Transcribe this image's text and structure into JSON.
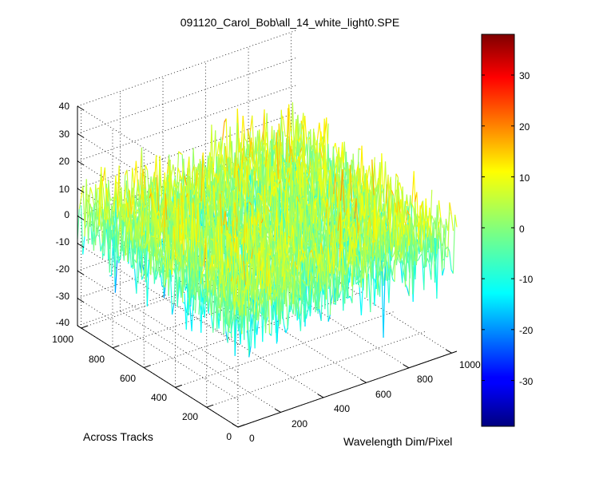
{
  "chart_data": {
    "type": "surface3d",
    "title": "091120_Carol_Bob\\all_14_white_light0.SPE",
    "xlabel": "Wavelength Dim/Pixel",
    "ylabel": "Across Tracks",
    "zlabel": "",
    "xlim": [
      0,
      1024
    ],
    "ylim": [
      0,
      1024
    ],
    "zlim": [
      -40,
      40
    ],
    "x_ticks": [
      "0",
      "200",
      "400",
      "600",
      "800",
      "1000"
    ],
    "y_ticks": [
      "0",
      "200",
      "400",
      "600",
      "800",
      "1000"
    ],
    "z_ticks": [
      "40",
      "30",
      "20",
      "10",
      "0",
      "-10",
      "-20",
      "-30",
      "-40"
    ],
    "colorbar": {
      "colormap": "jet",
      "range": [
        -39,
        38
      ],
      "ticks": [
        "30",
        "20",
        "10",
        "0",
        "-10",
        "-20",
        "-30"
      ]
    },
    "surface": {
      "description_of_values": "noise",
      "mean": 0,
      "approx_range": [
        -38,
        38
      ]
    },
    "grid": true
  }
}
